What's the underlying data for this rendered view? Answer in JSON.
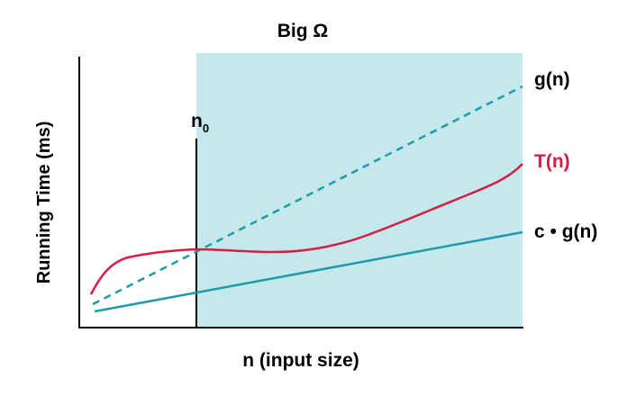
{
  "title": "Big Ω",
  "x_axis_label": "n (input size)",
  "y_axis_label": "Running Time (ms)",
  "threshold": {
    "label_main": "n",
    "label_sub": "0"
  },
  "curves": {
    "g": {
      "label": "g(n)",
      "style": "dashed",
      "color": "#1E9BA8"
    },
    "t": {
      "label": "T(n)",
      "color": "#D41E44"
    },
    "cg": {
      "label": "c • g(n)",
      "color": "#1E9BA8"
    }
  },
  "colors": {
    "region_fill": "#C4E8EC",
    "axis": "#000000",
    "text": "#000000"
  }
}
